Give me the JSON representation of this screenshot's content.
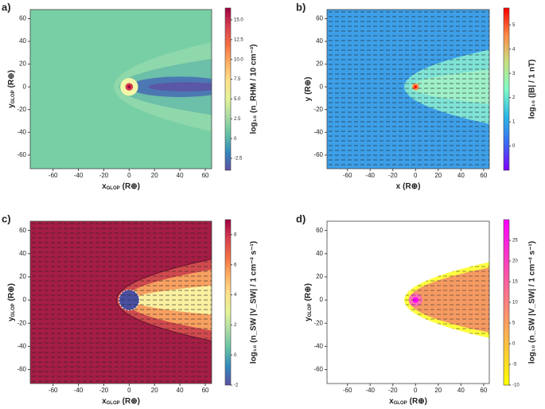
{
  "chart_data": [
    {
      "type": "heatmap",
      "panel_label": "a)",
      "x_label": "x",
      "x_label_sub": "GLOP",
      "x_unit": "(R⊕)",
      "y_label": "y",
      "y_label_sub": "GLOP",
      "y_unit": "(R⊕)",
      "xlim": [
        -78,
        65
      ],
      "ylim": [
        -72,
        68
      ],
      "xticks": [
        -60,
        -40,
        -20,
        0,
        20,
        40,
        60
      ],
      "yticks": [
        -60,
        -40,
        -20,
        0,
        20,
        40,
        60
      ],
      "colorbar_label": "log₁₀ (n_RHM / 10 cm⁻³)",
      "clim": [
        -4,
        16.5
      ],
      "cticks": [
        -2.5,
        0,
        2.5,
        {
          "value": 5,
          "label": "5.0"
        },
        {
          "value": 7.5,
          "label": "7.5"
        },
        {
          "value": 10,
          "label": "10.0"
        },
        {
          "value": 12.5,
          "label": "12.5"
        },
        {
          "value": 15,
          "label": "15.0"
        }
      ],
      "colormap": [
        "#5e4fa2",
        "#3288bd",
        "#66c2a5",
        "#abdda4",
        "#e6f598",
        "#fee08b",
        "#fdae61",
        "#f46d43",
        "#d53e4f",
        "#9e0142"
      ],
      "arrows": false
    },
    {
      "type": "heatmap",
      "panel_label": "b)",
      "x_label": "x",
      "x_unit": "(R⊕)",
      "y_label": "y",
      "y_unit": "(R⊕)",
      "xlim": [
        -78,
        65
      ],
      "ylim": [
        -72,
        68
      ],
      "xticks": [
        -60,
        -40,
        -20,
        0,
        20,
        40,
        60
      ],
      "yticks": [
        -60,
        -40,
        -20,
        0,
        20,
        40,
        60
      ],
      "colorbar_label": "log₁₀ (|B| / 1 nT)",
      "clim": [
        -1,
        5.7
      ],
      "cticks": [
        0,
        1,
        2,
        3,
        4,
        5
      ],
      "colormap": [
        "#8000ff",
        "#3a6cf4",
        "#2ab8e6",
        "#7ffcc6",
        "#c8e080",
        "#ff8a46",
        "#ff0000"
      ],
      "arrows": true
    },
    {
      "type": "heatmap",
      "panel_label": "c)",
      "x_label": "x",
      "x_label_sub": "GLOP",
      "x_unit": "(R⊕)",
      "y_label": "y",
      "y_label_sub": "GLOP",
      "y_unit": "(R⊕)",
      "xlim": [
        -78,
        65
      ],
      "ylim": [
        -72,
        68
      ],
      "xticks": [
        -60,
        -40,
        -20,
        0,
        20,
        40,
        60
      ],
      "yticks": [
        -60,
        -40,
        -20,
        0,
        20,
        40,
        60
      ],
      "colorbar_label": "log₁₀ (n_SW |V_SW| / 1 cm⁻² s⁻¹)",
      "clim": [
        -2,
        9
      ],
      "cticks": [
        -2,
        0,
        2,
        4,
        6,
        8
      ],
      "colormap": [
        "#5e4fa2",
        "#3288bd",
        "#66c2a5",
        "#abdda4",
        "#e6f598",
        "#fee08b",
        "#fdae61",
        "#f46d43",
        "#d53e4f",
        "#9e0142"
      ],
      "arrows": true
    },
    {
      "type": "heatmap",
      "panel_label": "d)",
      "x_label": "x",
      "x_label_sub": "GLOP",
      "x_unit": "(R⊕)",
      "y_label": "y",
      "y_label_sub": "GLOP",
      "y_unit": "(R⊕)",
      "xlim": [
        -78,
        65
      ],
      "ylim": [
        -72,
        68
      ],
      "xticks": [
        -60,
        -40,
        -20,
        0,
        20,
        40,
        60
      ],
      "yticks": [
        -60,
        -40,
        -20,
        0,
        20,
        40,
        60
      ],
      "colorbar_label": "log₁₀ (n_SW |V_SW| / 1 cm⁻² s⁻¹)",
      "clim": [
        -10,
        30
      ],
      "cticks": [
        -10,
        -5,
        0,
        5,
        10,
        15,
        20,
        25
      ],
      "colormap": [
        "#ffff00",
        "#ffbf40",
        "#ff8080",
        "#ff40bf",
        "#ff00ff"
      ],
      "arrows": true
    }
  ]
}
